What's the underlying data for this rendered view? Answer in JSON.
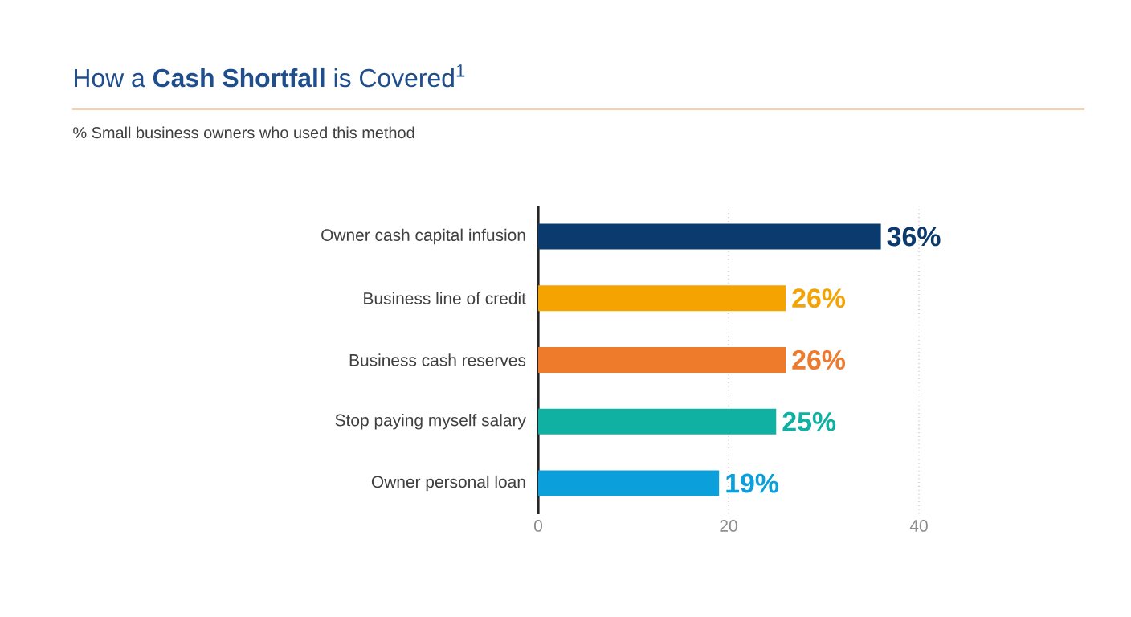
{
  "chart_data": {
    "type": "bar",
    "orientation": "horizontal",
    "title": "How a **Cash Shortfall** is Covered$^{1}$",
    "subtitle": "% Small business owners who used this method",
    "categories": [
      "Owner cash capital infusion",
      "Business line of credit",
      "Business cash reserves",
      "Stop paying myself salary",
      "Owner personal loan"
    ],
    "values": [
      36,
      26,
      26,
      25,
      19
    ],
    "value_labels": [
      "36%",
      "26%",
      "26%",
      "25%",
      "19%"
    ],
    "colors": [
      "#0b3a6e",
      "#f5a300",
      "#ee7a2c",
      "#10b0a2",
      "#0ba0dc"
    ],
    "xlim": [
      0,
      40
    ],
    "xticks": [
      0,
      20,
      40
    ],
    "grid": "x"
  }
}
